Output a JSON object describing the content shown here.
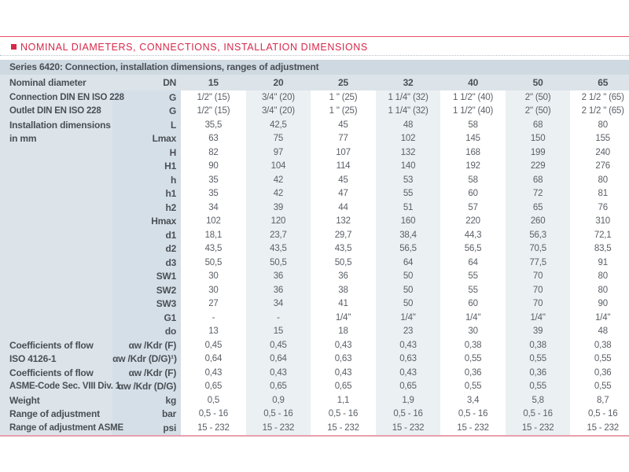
{
  "section_heading": "NOMINAL DIAMETERS, CONNECTIONS, INSTALLATION DIMENSIONS",
  "table_title": "Series 6420: Connection, installation dimensions, ranges of adjustment",
  "header": {
    "label": "Nominal diameter",
    "unit": "DN",
    "values": [
      "15",
      "20",
      "25",
      "32",
      "40",
      "50",
      "65"
    ]
  },
  "rows": [
    {
      "label": "Connection DIN EN ISO 228",
      "unit": "G",
      "values": [
        "1/2\" (15)",
        "3/4\" (20)",
        "1 \" (25)",
        "1 1/4\" (32)",
        "1 1/2\" (40)",
        "2\" (50)",
        "2 1/2 \" (65)"
      ]
    },
    {
      "label": "Outlet DIN EN ISO 228",
      "unit": "G",
      "values": [
        "1/2\" (15)",
        "3/4\" (20)",
        "1 \" (25)",
        "1 1/4\" (32)",
        "1 1/2\" (40)",
        "2\" (50)",
        "2 1/2 \" (65)"
      ]
    },
    {
      "label": "Installation dimensions",
      "big": true,
      "unit": "L",
      "values": [
        "35,5",
        "42,5",
        "45",
        "48",
        "58",
        "68",
        "80"
      ]
    },
    {
      "label": "in mm",
      "big": true,
      "unit": "Lmax",
      "values": [
        "63",
        "75",
        "77",
        "102",
        "145",
        "150",
        "155"
      ]
    },
    {
      "label": "",
      "unit": "H",
      "values": [
        "82",
        "97",
        "107",
        "132",
        "168",
        "199",
        "240"
      ]
    },
    {
      "label": "",
      "unit": "H1",
      "values": [
        "90",
        "104",
        "114",
        "140",
        "192",
        "229",
        "276"
      ]
    },
    {
      "label": "",
      "unit": "h",
      "values": [
        "35",
        "42",
        "45",
        "53",
        "58",
        "68",
        "80"
      ]
    },
    {
      "label": "",
      "unit": "h1",
      "values": [
        "35",
        "42",
        "47",
        "55",
        "60",
        "72",
        "81"
      ]
    },
    {
      "label": "",
      "unit": "h2",
      "values": [
        "34",
        "39",
        "44",
        "51",
        "57",
        "65",
        "76"
      ]
    },
    {
      "label": "",
      "unit": "Hmax",
      "values": [
        "102",
        "120",
        "132",
        "160",
        "220",
        "260",
        "310"
      ]
    },
    {
      "label": "",
      "unit": "d1",
      "values": [
        "18,1",
        "23,7",
        "29,7",
        "38,4",
        "44,3",
        "56,3",
        "72,1"
      ]
    },
    {
      "label": "",
      "unit": "d2",
      "values": [
        "43,5",
        "43,5",
        "43,5",
        "56,5",
        "56,5",
        "70,5",
        "83,5"
      ]
    },
    {
      "label": "",
      "unit": "d3",
      "values": [
        "50,5",
        "50,5",
        "50,5",
        "64",
        "64",
        "77,5",
        "91"
      ]
    },
    {
      "label": "",
      "unit": "SW1",
      "values": [
        "30",
        "36",
        "36",
        "50",
        "55",
        "70",
        "80"
      ]
    },
    {
      "label": "",
      "unit": "SW2",
      "values": [
        "30",
        "36",
        "38",
        "50",
        "55",
        "70",
        "80"
      ]
    },
    {
      "label": "",
      "unit": "SW3",
      "values": [
        "27",
        "34",
        "41",
        "50",
        "60",
        "70",
        "90"
      ]
    },
    {
      "label": "",
      "unit": "G1",
      "values": [
        "-",
        "-",
        "1/4\"",
        "1/4\"",
        "1/4\"",
        "1/4\"",
        "1/4\""
      ]
    },
    {
      "label": "",
      "unit": "do",
      "values": [
        "13",
        "15",
        "18",
        "23",
        "30",
        "39",
        "48"
      ]
    },
    {
      "label": "Coefficients of flow",
      "big": true,
      "unit": "αw /Kdr (F)",
      "values": [
        "0,45",
        "0,45",
        "0,43",
        "0,43",
        "0,38",
        "0,38",
        "0,38"
      ]
    },
    {
      "label": "ISO 4126-1",
      "big": true,
      "unit": "αw /Kdr (D/G)¹)",
      "values": [
        "0,64",
        "0,64",
        "0,63",
        "0,63",
        "0,55",
        "0,55",
        "0,55"
      ]
    },
    {
      "label": "Coefficients of flow",
      "big": true,
      "unit": "αw /Kdr (F)",
      "values": [
        "0,43",
        "0,43",
        "0,43",
        "0,43",
        "0,36",
        "0,36",
        "0,36"
      ]
    },
    {
      "label": "ASME-Code Sec. VIII Div. 1",
      "unit": "αw /Kdr (D/G)",
      "values": [
        "0,65",
        "0,65",
        "0,65",
        "0,65",
        "0,55",
        "0,55",
        "0,55"
      ]
    },
    {
      "label": "Weight",
      "big": true,
      "unit": "kg",
      "values": [
        "0,5",
        "0,9",
        "1,1",
        "1,9",
        "3,4",
        "5,8",
        "8,7"
      ]
    },
    {
      "label": "Range of adjustment",
      "big": true,
      "unit": "bar",
      "values": [
        "0,5 - 16",
        "0,5 - 16",
        "0,5 - 16",
        "0,5 - 16",
        "0,5 - 16",
        "0,5 - 16",
        "0,5 - 16"
      ]
    },
    {
      "label": "Range of adjustment ASME",
      "unit": "psi",
      "values": [
        "15 - 232",
        "15 - 232",
        "15 - 232",
        "15 - 232",
        "15 - 232",
        "15 - 232",
        "15 - 232"
      ]
    }
  ],
  "colors": {
    "accent": "#d6294a",
    "header_bg": "#cfd9e1",
    "label_bg": "#dce4ea",
    "stripe": "#ebf0f3"
  }
}
